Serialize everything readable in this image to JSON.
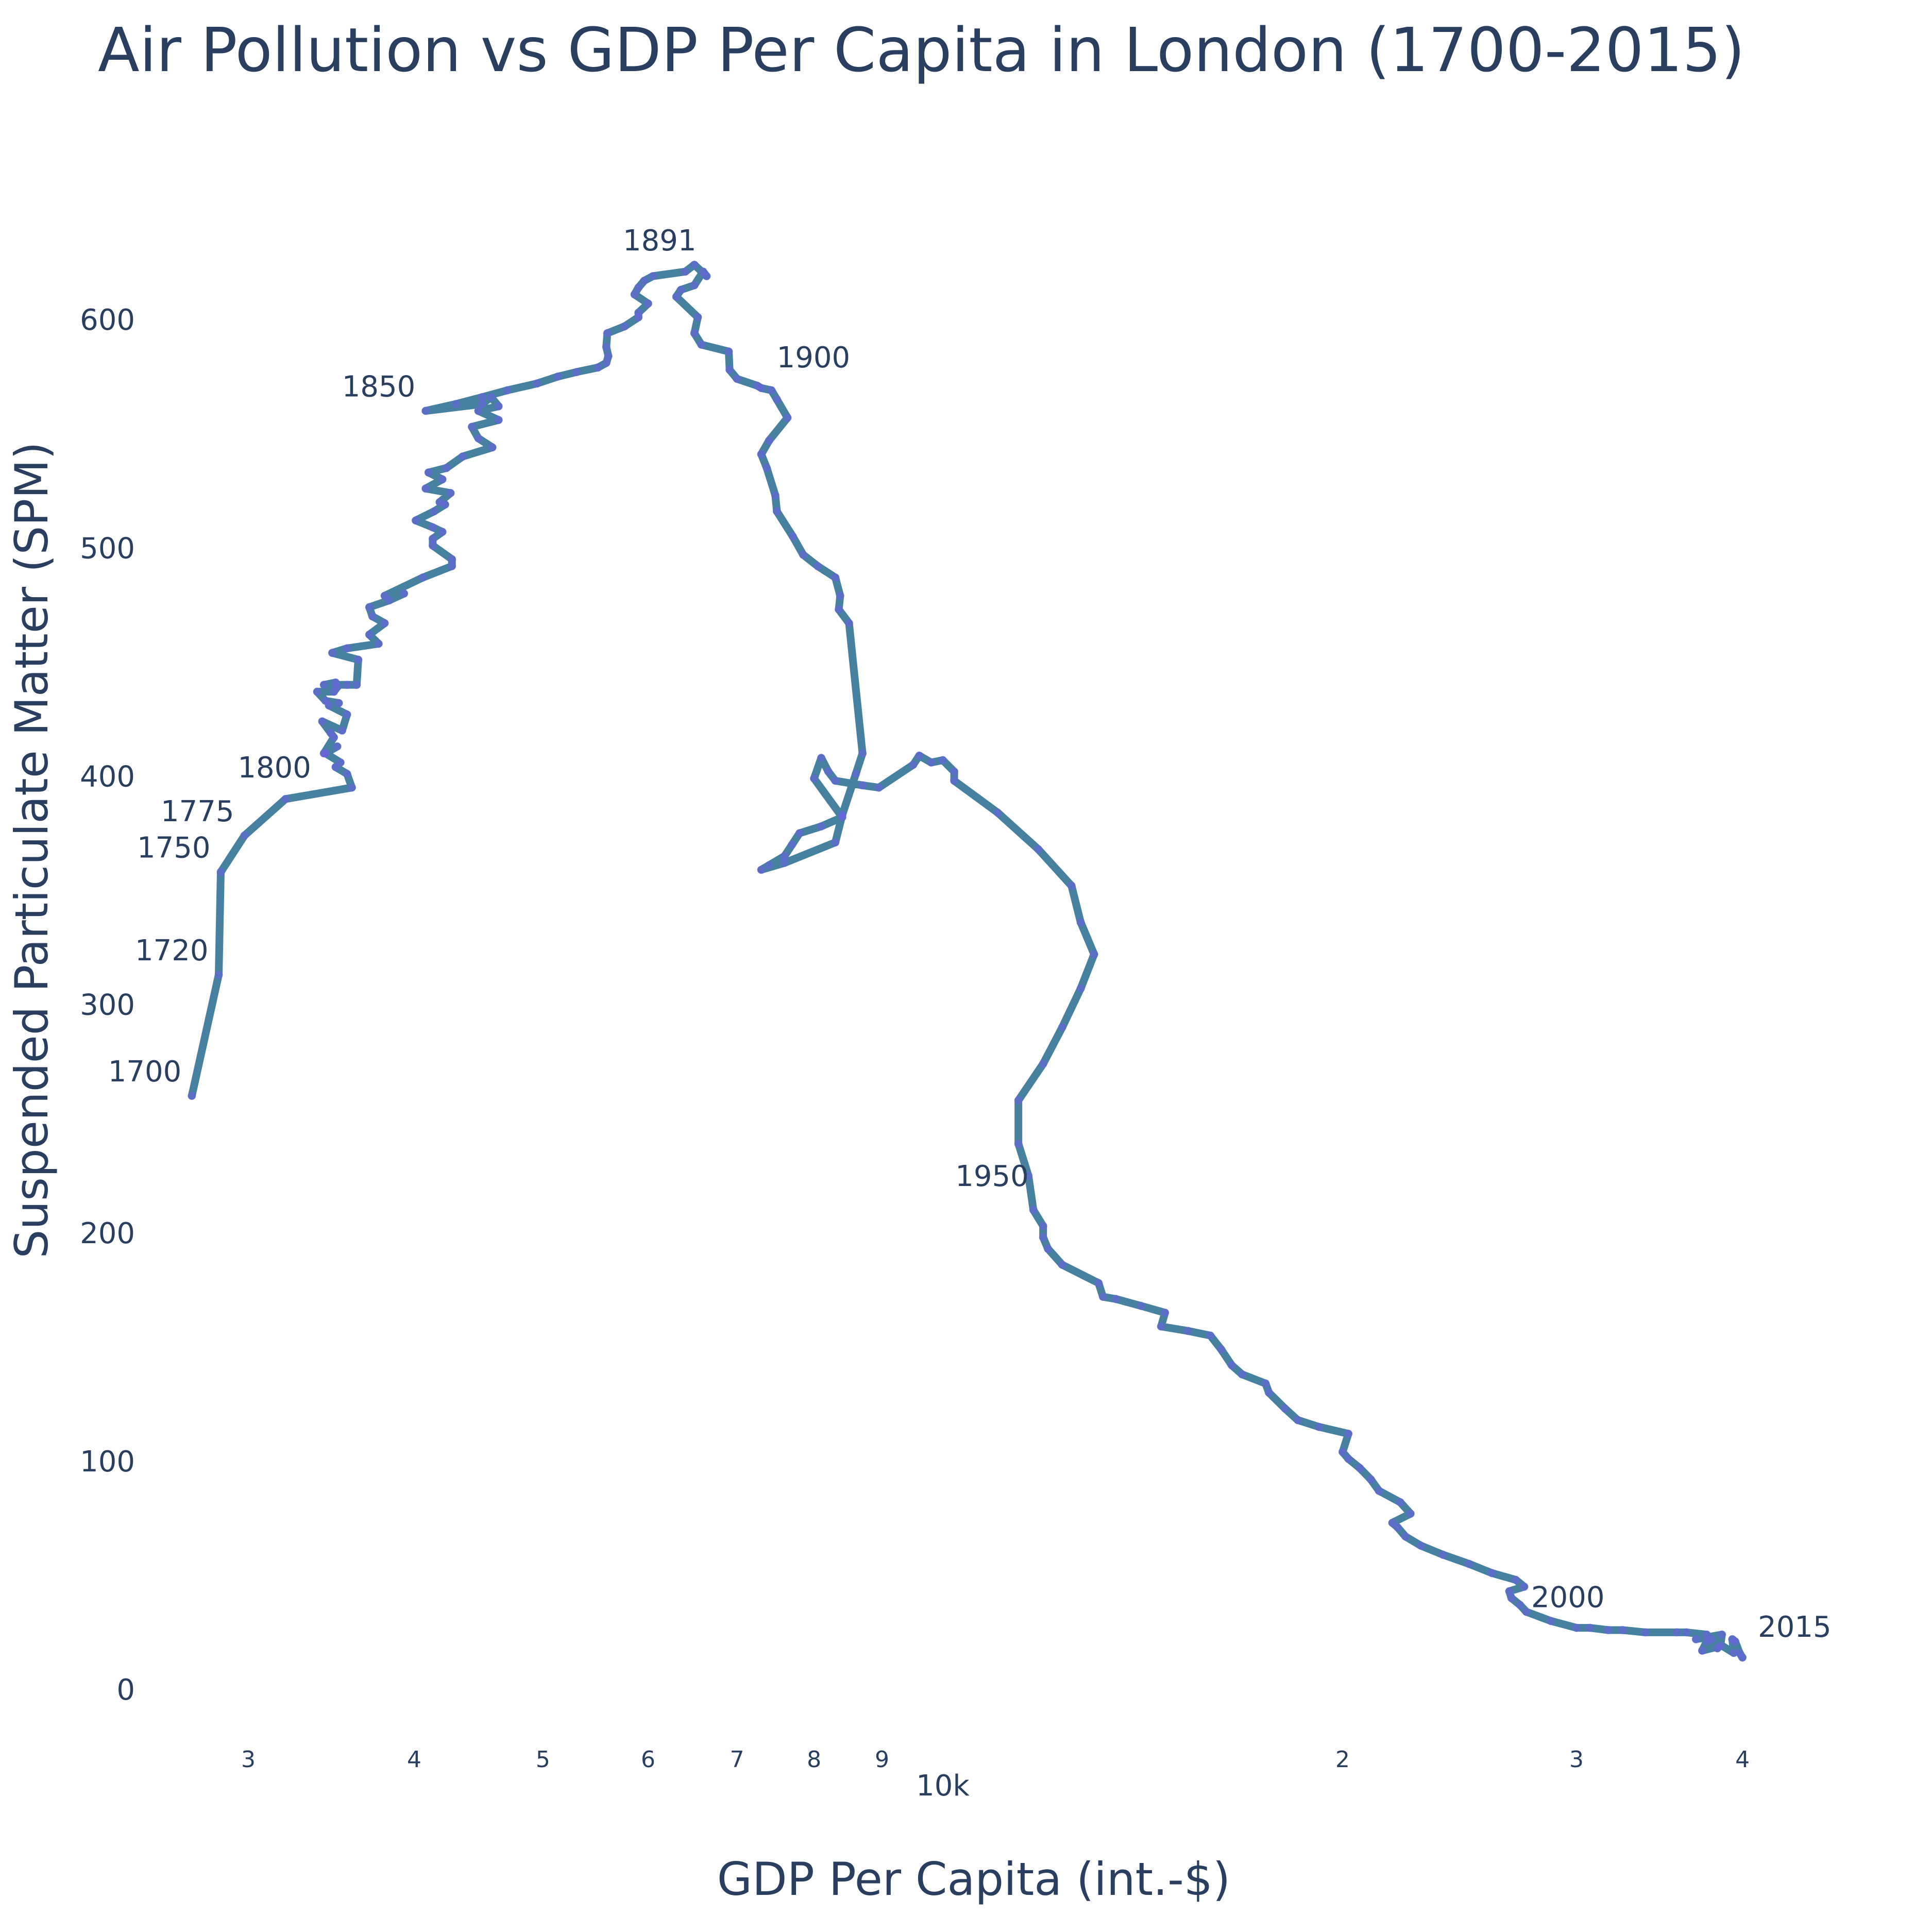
{
  "chart_data": {
    "type": "line",
    "title": "Air Pollution vs GDP Per Capita in London (1700-2015)",
    "xlabel": "GDP Per Capita (int.-$)",
    "ylabel": "Suspended Particulate Matter (SPM)",
    "xscale": "log",
    "xlim": [
      2550,
      42500
    ],
    "ylim": [
      -25,
      670
    ],
    "grid": false,
    "legend": "none",
    "line_color": "#4682a0",
    "marker_color": "#6e5fe6",
    "x_ticks": [
      {
        "value": 3000,
        "label": "3"
      },
      {
        "value": 4000,
        "label": "4"
      },
      {
        "value": 5000,
        "label": "5"
      },
      {
        "value": 6000,
        "label": "6"
      },
      {
        "value": 7000,
        "label": "7"
      },
      {
        "value": 8000,
        "label": "8"
      },
      {
        "value": 9000,
        "label": "9"
      },
      {
        "value": 10000,
        "label": "10k"
      },
      {
        "value": 20000,
        "label": "2"
      },
      {
        "value": 30000,
        "label": "3"
      },
      {
        "value": 40000,
        "label": "4"
      }
    ],
    "y_ticks": [
      {
        "value": 0,
        "label": "0"
      },
      {
        "value": 100,
        "label": "100"
      },
      {
        "value": 200,
        "label": "200"
      },
      {
        "value": 300,
        "label": "300"
      },
      {
        "value": 400,
        "label": "400"
      },
      {
        "value": 500,
        "label": "500"
      },
      {
        "value": 600,
        "label": "600"
      }
    ],
    "x": [
      2720,
      2850,
      2860,
      2980,
      3200,
      3590,
      3560,
      3490,
      3520,
      3430,
      3500,
      3420,
      3480,
      3460,
      3410,
      3530,
      3560,
      3450,
      3510,
      3430,
      3380,
      3480,
      3500,
      3490,
      3420,
      3560,
      3620,
      3630,
      3470,
      3560,
      3760,
      3700,
      3800,
      3720,
      3700,
      3830,
      3930,
      3800,
      4060,
      4270,
      4270,
      4130,
      4130,
      4200,
      4130,
      4010,
      4140,
      4220,
      4180,
      4260,
      4080,
      4200,
      4100,
      4230,
      4350,
      4580,
      4470,
      4420,
      4630,
      4470,
      4630,
      4570,
      4500,
      4080,
      4300,
      4500,
      4700,
      4950,
      5130,
      5300,
      5500,
      5580,
      5600,
      5580,
      5590,
      5760,
      5900,
      5900,
      6000,
      5860,
      5900,
      5960,
      6050,
      6400,
      6500,
      6640,
      6600,
      6500,
      6350,
      6300,
      6540,
      6500,
      6580,
      6900,
      6910,
      7000,
      7250,
      7300,
      7430,
      7500,
      7640,
      7400,
      7300,
      7370,
      7480,
      7500,
      7710,
      7850,
      8050,
      8300,
      8370,
      8350,
      8500,
      8700,
      8600,
      8400,
      8300,
      7600,
      7300,
      7400,
      7600,
      7700,
      7800,
      8100,
      8400,
      8000,
      8100,
      8200,
      8300,
      8700,
      8950,
      9500,
      9600,
      9800,
      10000,
      10200,
      10200,
      11000,
      11800,
      12500,
      12700,
      13000,
      12700,
      12300,
      11900,
      11400,
      11400,
      11600,
      11700,
      11900,
      11900,
      12000,
      12300,
      13100,
      13200,
      13500,
      14100,
      14700,
      14600,
      15300,
      15900,
      16200,
      16500,
      16800,
      17500,
      17600,
      18100,
      18500,
      19200,
      20200,
      20000,
      20200,
      20600,
      21000,
      21300,
      22100,
      22500,
      21800,
      22000,
      22300,
      22900,
      23800,
      24900,
      25900,
      27000,
      27400,
      26700,
      26800,
      27200,
      27500,
      28700,
      30000,
      30700,
      31700,
      32500,
      33800,
      35700,
      36300,
      37600,
      36900,
      38600,
      38500,
      37300,
      37600,
      38300,
      37900,
      39400,
      39300,
      39500,
      39800,
      40000
    ],
    "y": [
      260,
      313,
      358,
      374,
      390,
      395,
      401,
      404,
      406,
      410,
      413,
      410,
      417,
      419,
      424,
      420,
      427,
      431,
      432,
      433,
      437,
      437,
      439,
      441,
      440,
      440,
      440,
      451,
      454,
      456,
      458,
      462,
      467,
      470,
      474,
      477,
      480,
      479,
      487,
      492,
      495,
      501,
      504,
      507,
      509,
      512,
      516,
      519,
      520,
      524,
      526,
      530,
      533,
      535,
      540,
      544,
      548,
      553,
      556,
      560,
      562,
      566,
      563,
      560,
      563,
      566,
      569,
      572,
      575,
      577,
      579,
      581,
      584,
      588,
      594,
      597,
      601,
      603,
      607,
      611,
      614,
      617,
      619,
      621,
      624,
      619,
      621,
      615,
      613,
      610,
      601,
      594,
      589,
      586,
      578,
      574,
      571,
      570,
      569,
      565,
      557,
      547,
      541,
      535,
      523,
      516,
      505,
      497,
      492,
      487,
      479,
      473,
      467,
      410,
      401,
      383,
      371,
      362,
      359,
      361,
      365,
      370,
      375,
      378,
      382,
      399,
      408,
      402,
      398,
      396,
      395,
      405,
      409,
      406,
      407,
      402,
      398,
      384,
      368,
      352,
      336,
      322,
      307,
      290,
      274,
      258,
      239,
      225,
      210,
      203,
      198,
      193,
      186,
      178,
      172,
      171,
      168,
      165,
      159,
      157,
      155,
      149,
      142,
      138,
      134,
      130,
      123,
      118,
      115,
      112,
      104,
      101,
      97,
      92,
      87,
      82,
      77,
      73,
      71,
      67,
      63,
      59,
      55,
      51,
      48,
      45,
      43,
      40,
      37,
      34,
      30,
      27,
      27,
      26,
      26,
      25,
      25,
      25,
      24,
      22,
      24,
      19,
      17,
      21,
      18,
      22,
      16,
      22,
      21,
      16,
      14
    ],
    "labels": [
      {
        "text": "1700",
        "x": 2720,
        "y": 260,
        "pos": "upper-left"
      },
      {
        "text": "1720",
        "x": 2850,
        "y": 313,
        "pos": "upper-left"
      },
      {
        "text": "1750",
        "x": 2860,
        "y": 358,
        "pos": "upper-left"
      },
      {
        "text": "1775",
        "x": 2980,
        "y": 374,
        "pos": "upper-left"
      },
      {
        "text": "1800",
        "x": 3430,
        "y": 404,
        "pos": "left"
      },
      {
        "text": "1850",
        "x": 4080,
        "y": 560,
        "pos": "upper-left"
      },
      {
        "text": "1891",
        "x": 6640,
        "y": 624,
        "pos": "upper-left"
      },
      {
        "text": "1900",
        "x": 7300,
        "y": 570,
        "pos": "upper-right"
      },
      {
        "text": "1950",
        "x": 11900,
        "y": 225,
        "pos": "left"
      },
      {
        "text": "2000",
        "x": 27000,
        "y": 27,
        "pos": "upper-right"
      },
      {
        "text": "2015",
        "x": 40000,
        "y": 14,
        "pos": "upper-right"
      }
    ]
  }
}
